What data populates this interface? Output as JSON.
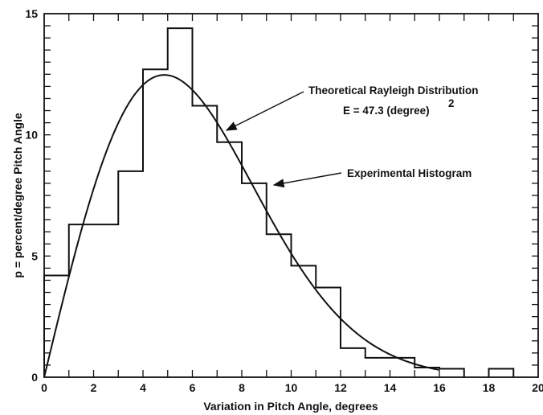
{
  "chart_data": {
    "type": "line",
    "xlabel": "Variation in Pitch Angle, degrees",
    "ylabel": "p = percent/degree Pitch Angle",
    "xlim": [
      0,
      20
    ],
    "ylim": [
      0,
      15
    ],
    "x_ticks": [
      0,
      2,
      4,
      6,
      8,
      10,
      12,
      14,
      16,
      18,
      20
    ],
    "y_ticks": [
      0,
      5,
      10,
      15
    ],
    "grid": false,
    "series": [
      {
        "name": "Experimental Histogram",
        "type": "histogram",
        "bins": [
          {
            "x0": 0,
            "x1": 1,
            "y": 4.2
          },
          {
            "x0": 1,
            "x1": 2,
            "y": 6.3
          },
          {
            "x0": 2,
            "x1": 3,
            "y": 6.3
          },
          {
            "x0": 3,
            "x1": 4,
            "y": 8.5
          },
          {
            "x0": 4,
            "x1": 5,
            "y": 12.7
          },
          {
            "x0": 5,
            "x1": 6,
            "y": 14.4
          },
          {
            "x0": 6,
            "x1": 7,
            "y": 11.2
          },
          {
            "x0": 7,
            "x1": 8,
            "y": 9.7
          },
          {
            "x0": 8,
            "x1": 9,
            "y": 8.0
          },
          {
            "x0": 9,
            "x1": 10,
            "y": 5.9
          },
          {
            "x0": 10,
            "x1": 11,
            "y": 4.6
          },
          {
            "x0": 11,
            "x1": 12,
            "y": 3.7
          },
          {
            "x0": 12,
            "x1": 13,
            "y": 1.2
          },
          {
            "x0": 13,
            "x1": 15,
            "y": 0.8
          },
          {
            "x0": 15,
            "x1": 16,
            "y": 0.4
          },
          {
            "x0": 16,
            "x1": 17,
            "y": 0.35
          },
          {
            "x0": 18,
            "x1": 19,
            "y": 0.35
          }
        ]
      },
      {
        "name": "Theoretical Rayleigh Distribution",
        "type": "curve",
        "E": 47.3,
        "formula": "p = 100 * (2x/E) * exp(-x^2/E)",
        "x_range": [
          0,
          16
        ]
      }
    ],
    "annotations": [
      {
        "lines": [
          "Theoretical Rayleigh Distribution",
          "E = 47.3 (degree)",
          "2"
        ],
        "points_to": {
          "x": 7.2,
          "y": 10.1
        }
      },
      {
        "lines": [
          "Experimental Histogram"
        ],
        "points_to": {
          "x": 9.0,
          "y": 7.9
        }
      }
    ]
  }
}
